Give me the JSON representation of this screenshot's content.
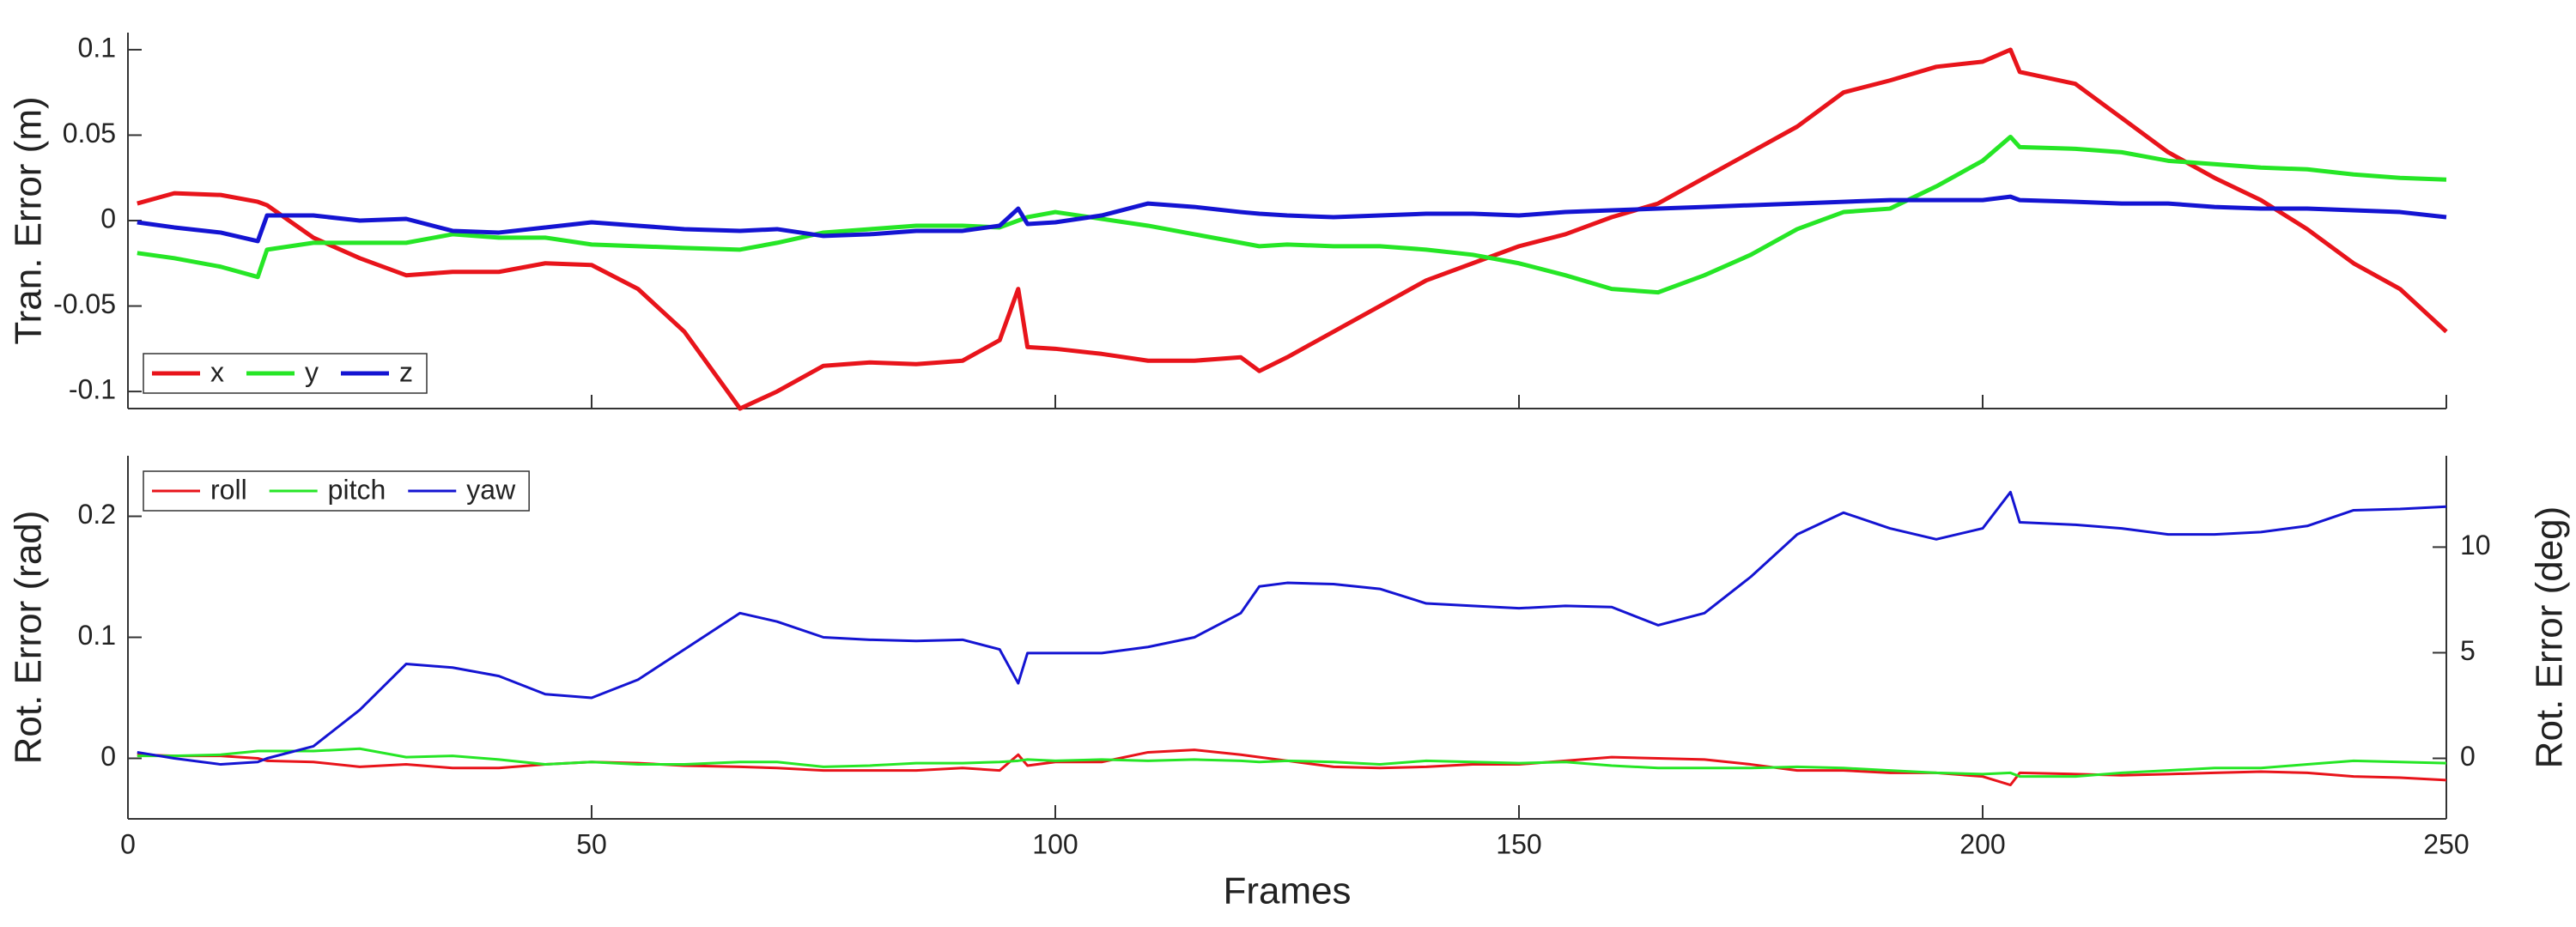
{
  "chart_data": [
    {
      "type": "line",
      "ylabel": "Tran. Error (m)",
      "x": [
        1,
        5,
        10,
        14,
        15,
        20,
        25,
        30,
        35,
        40,
        45,
        50,
        55,
        60,
        66,
        70,
        75,
        80,
        85,
        90,
        94,
        96,
        97,
        100,
        105,
        110,
        115,
        120,
        122,
        125,
        130,
        135,
        140,
        145,
        150,
        155,
        160,
        165,
        170,
        175,
        180,
        185,
        190,
        195,
        200,
        203,
        204,
        210,
        215,
        220,
        225,
        230,
        235,
        240,
        245,
        250
      ],
      "xlim": [
        0,
        250
      ],
      "xticks": [
        0,
        50,
        100,
        150,
        200,
        250
      ],
      "show_xtick_labels": false,
      "ylim": [
        -0.11,
        0.11
      ],
      "yticks": [
        -0.1,
        -0.05,
        0,
        0.05,
        0.1
      ],
      "grid": false,
      "legend": "lower left",
      "line_width": 5,
      "series": [
        {
          "name": "x",
          "color": "#e8141b",
          "values": [
            0.01,
            0.016,
            0.015,
            0.011,
            0.009,
            -0.01,
            -0.022,
            -0.032,
            -0.03,
            -0.03,
            -0.025,
            -0.026,
            -0.04,
            -0.065,
            -0.11,
            -0.1,
            -0.085,
            -0.083,
            -0.084,
            -0.082,
            -0.07,
            -0.04,
            -0.074,
            -0.075,
            -0.078,
            -0.082,
            -0.082,
            -0.08,
            -0.088,
            -0.08,
            -0.065,
            -0.05,
            -0.035,
            -0.025,
            -0.015,
            -0.008,
            0.002,
            0.01,
            0.025,
            0.04,
            0.055,
            0.075,
            0.082,
            0.09,
            0.093,
            0.1,
            0.087,
            0.08,
            0.06,
            0.04,
            0.025,
            0.012,
            -0.005,
            -0.025,
            -0.04,
            -0.065
          ]
        },
        {
          "name": "y",
          "color": "#26e626",
          "values": [
            -0.019,
            -0.022,
            -0.027,
            -0.033,
            -0.017,
            -0.013,
            -0.013,
            -0.013,
            -0.008,
            -0.01,
            -0.01,
            -0.014,
            -0.015,
            -0.016,
            -0.017,
            -0.013,
            -0.007,
            -0.005,
            -0.003,
            -0.003,
            -0.004,
            0.0,
            0.002,
            0.005,
            0.001,
            -0.003,
            -0.008,
            -0.013,
            -0.015,
            -0.014,
            -0.015,
            -0.015,
            -0.017,
            -0.02,
            -0.025,
            -0.032,
            -0.04,
            -0.042,
            -0.032,
            -0.02,
            -0.005,
            0.005,
            0.007,
            0.02,
            0.035,
            0.049,
            0.043,
            0.042,
            0.04,
            0.035,
            0.033,
            0.031,
            0.03,
            0.027,
            0.025,
            0.024
          ]
        },
        {
          "name": "z",
          "color": "#1414d2",
          "values": [
            -0.001,
            -0.004,
            -0.007,
            -0.012,
            0.003,
            0.003,
            0,
            0.001,
            -0.006,
            -0.007,
            -0.004,
            -0.001,
            -0.003,
            -0.005,
            -0.006,
            -0.005,
            -0.009,
            -0.008,
            -0.006,
            -0.006,
            -0.003,
            0.007,
            -0.002,
            -0.001,
            0.003,
            0.01,
            0.008,
            0.005,
            0.004,
            0.003,
            0.002,
            0.003,
            0.004,
            0.004,
            0.003,
            0.005,
            0.006,
            0.007,
            0.008,
            0.009,
            0.01,
            0.011,
            0.012,
            0.012,
            0.012,
            0.014,
            0.012,
            0.011,
            0.01,
            0.01,
            0.008,
            0.007,
            0.007,
            0.006,
            0.005,
            0.002
          ]
        }
      ]
    },
    {
      "type": "line",
      "xlabel": "Frames",
      "ylabel": "Rot. Error (rad)",
      "y2label": "Rot. Error (deg)",
      "x": [
        1,
        5,
        10,
        14,
        15,
        20,
        25,
        30,
        35,
        40,
        45,
        50,
        55,
        60,
        66,
        70,
        75,
        80,
        85,
        90,
        94,
        96,
        97,
        100,
        105,
        110,
        115,
        120,
        122,
        125,
        130,
        135,
        140,
        145,
        150,
        155,
        160,
        165,
        170,
        175,
        180,
        185,
        190,
        195,
        200,
        203,
        204,
        210,
        215,
        220,
        225,
        230,
        235,
        240,
        245,
        250
      ],
      "xlim": [
        0,
        250
      ],
      "xticks": [
        0,
        50,
        100,
        150,
        200,
        250
      ],
      "show_xtick_labels": true,
      "ylim": [
        -0.05,
        0.25
      ],
      "yticks": [
        0,
        0.1,
        0.2
      ],
      "y2lim": [
        -2.865,
        14.324
      ],
      "y2ticks": [
        0,
        5,
        10
      ],
      "grid": false,
      "legend": "upper left",
      "line_width": 3,
      "series": [
        {
          "name": "roll",
          "color": "#e8141b",
          "values": [
            0.003,
            0.002,
            0.002,
            0,
            -0.002,
            -0.003,
            -0.007,
            -0.005,
            -0.008,
            -0.008,
            -0.005,
            -0.003,
            -0.004,
            -0.006,
            -0.007,
            -0.008,
            -0.01,
            -0.01,
            -0.01,
            -0.008,
            -0.01,
            0.003,
            -0.006,
            -0.003,
            -0.003,
            0.005,
            0.007,
            0.003,
            0.001,
            -0.002,
            -0.007,
            -0.008,
            -0.007,
            -0.005,
            -0.005,
            -0.002,
            0.001,
            0.0,
            -0.001,
            -0.005,
            -0.01,
            -0.01,
            -0.012,
            -0.012,
            -0.015,
            -0.022,
            -0.012,
            -0.013,
            -0.014,
            -0.013,
            -0.012,
            -0.011,
            -0.012,
            -0.015,
            -0.016,
            -0.018
          ]
        },
        {
          "name": "pitch",
          "color": "#26e626",
          "values": [
            0.002,
            0.002,
            0.003,
            0.006,
            0.006,
            0.006,
            0.008,
            0.001,
            0.002,
            -0.001,
            -0.005,
            -0.003,
            -0.005,
            -0.005,
            -0.003,
            -0.003,
            -0.007,
            -0.006,
            -0.004,
            -0.004,
            -0.003,
            -0.002,
            -0.001,
            -0.002,
            -0.001,
            -0.002,
            -0.001,
            -0.002,
            -0.003,
            -0.002,
            -0.003,
            -0.005,
            -0.002,
            -0.003,
            -0.004,
            -0.003,
            -0.006,
            -0.008,
            -0.008,
            -0.008,
            -0.007,
            -0.008,
            -0.01,
            -0.012,
            -0.013,
            -0.012,
            -0.015,
            -0.015,
            -0.012,
            -0.01,
            -0.008,
            -0.008,
            -0.005,
            -0.002,
            -0.003,
            -0.004
          ]
        },
        {
          "name": "yaw",
          "color": "#1414d2",
          "values": [
            0.005,
            0,
            -0.005,
            -0.003,
            0,
            0.01,
            0.04,
            0.078,
            0.075,
            0.068,
            0.053,
            0.05,
            0.065,
            0.09,
            0.12,
            0.113,
            0.1,
            0.098,
            0.097,
            0.098,
            0.09,
            0.062,
            0.087,
            0.087,
            0.087,
            0.092,
            0.1,
            0.12,
            0.142,
            0.145,
            0.144,
            0.14,
            0.128,
            0.126,
            0.124,
            0.126,
            0.125,
            0.11,
            0.12,
            0.15,
            0.185,
            0.203,
            0.19,
            0.181,
            0.19,
            0.22,
            0.195,
            0.193,
            0.19,
            0.185,
            0.185,
            0.187,
            0.192,
            0.205,
            0.206,
            0.208
          ]
        }
      ]
    }
  ]
}
